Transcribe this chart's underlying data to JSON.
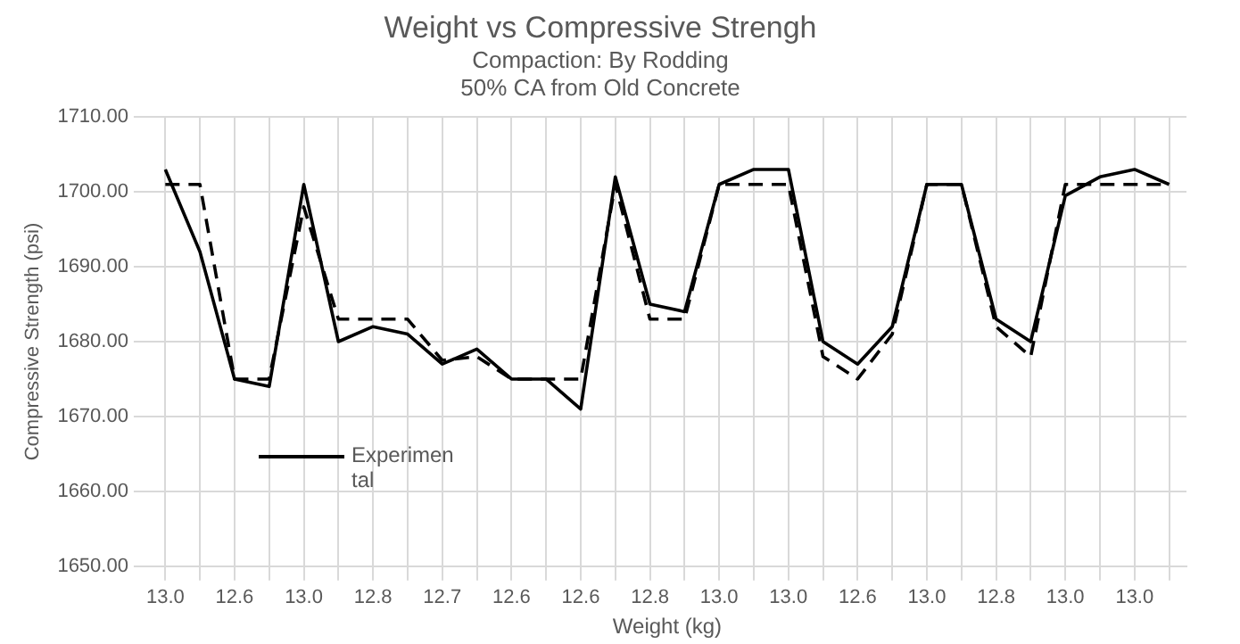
{
  "chart_data": {
    "type": "line",
    "title": "Weight vs Compressive Strengh",
    "subtitle": "Compaction: By Rodding\n50% CA from Old Concrete",
    "xlabel": "Weight (kg)",
    "ylabel": "Compressive Strength (psi)",
    "categories": [
      "13.0",
      null,
      "12.6",
      null,
      "13.0",
      null,
      "12.8",
      null,
      "12.7",
      null,
      "12.6",
      null,
      "12.6",
      null,
      "12.8",
      null,
      "13.0",
      null,
      "13.0",
      null,
      "12.6",
      null,
      "13.0",
      null,
      "12.8",
      null,
      "13.0",
      null,
      "13.0",
      null
    ],
    "series": [
      {
        "name": "Experimental",
        "color": "#000000",
        "line_style": "solid",
        "values": [
          1703,
          1692,
          1675,
          1674,
          1701,
          1680,
          1682,
          1681,
          1677,
          1679,
          1675,
          1675,
          1671,
          1702,
          1685,
          1684,
          1701,
          1703,
          1703,
          1680,
          1677,
          1682,
          1701,
          1701,
          1683,
          1680,
          1699.5,
          1702,
          1703,
          1701
        ]
      },
      {
        "color": "#000000",
        "line_style": "dashed",
        "values": [
          1701,
          1701,
          1675,
          1675,
          1698,
          1683,
          1683,
          1683,
          1677.5,
          1678,
          1675,
          1675,
          1675,
          1701,
          1683,
          1683,
          1701,
          1701,
          1701,
          1678,
          1675,
          1681,
          1701,
          1701,
          1682,
          1678,
          1701,
          1701,
          1701,
          1701
        ]
      }
    ],
    "ylim": [
      1650,
      1710
    ],
    "yticks": [
      {
        "value": 1650,
        "label": "1650.00"
      },
      {
        "value": 1660,
        "label": "1660.00"
      },
      {
        "value": 1670,
        "label": "1670.00"
      },
      {
        "value": 1680,
        "label": "1680.00"
      },
      {
        "value": 1690,
        "label": "1690.00"
      },
      {
        "value": 1700,
        "label": "1700.00"
      },
      {
        "value": 1710,
        "label": "1710.00"
      }
    ],
    "grid": true,
    "legend": "bottom left",
    "marker": "none"
  }
}
